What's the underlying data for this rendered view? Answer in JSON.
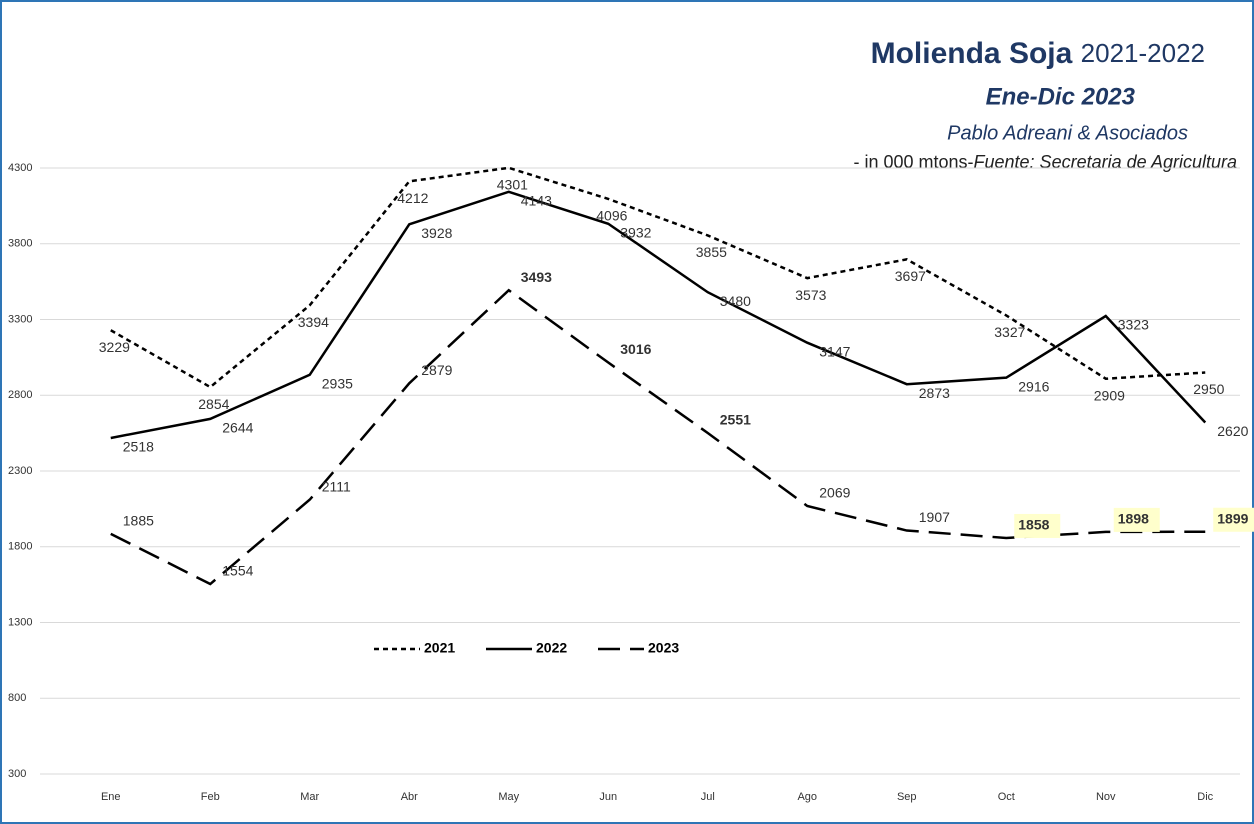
{
  "chart_data": {
    "type": "line",
    "title": "Molienda  Soja",
    "title_years": "2021-2022",
    "subtitle": "Ene-Dic 2023",
    "author": "Pablo Adreani & Asociados",
    "unit_note": "- in  000 mtons-",
    "source": "Fuente: Secretaria de Agricultura",
    "categories": [
      "Ene",
      "Feb",
      "Mar",
      "Abr",
      "May",
      "Jun",
      "Jul",
      "Ago",
      "Sep",
      "Oct",
      "Nov",
      "Dic"
    ],
    "series": [
      {
        "name": "2021",
        "color": "#000000",
        "dash": "5,4",
        "values": [
          3229,
          2854,
          3394,
          4212,
          4301,
          4096,
          3855,
          3573,
          3697,
          3327,
          2909,
          2950
        ]
      },
      {
        "name": "2022",
        "color": "#000000",
        "dash": "none",
        "values": [
          2518,
          2644,
          2935,
          3928,
          4143,
          3932,
          3480,
          3147,
          2873,
          2916,
          3323,
          2620
        ]
      },
      {
        "name": "2023",
        "color": "#000000",
        "dash": "22,10",
        "values": [
          1885,
          1554,
          2111,
          2879,
          3493,
          3016,
          2551,
          2069,
          1907,
          1858,
          1898,
          1899
        ]
      }
    ],
    "ylim": [
      300,
      4300
    ],
    "yticks": [
      300,
      800,
      1300,
      1800,
      2300,
      2800,
      3300,
      3800,
      4300
    ],
    "grid": true
  }
}
